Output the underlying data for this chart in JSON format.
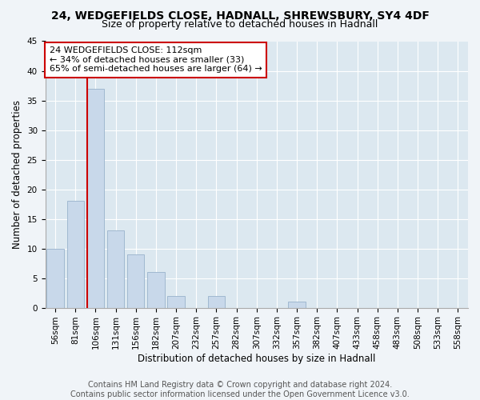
{
  "title": "24, WEDGEFIELDS CLOSE, HADNALL, SHREWSBURY, SY4 4DF",
  "subtitle": "Size of property relative to detached houses in Hadnall",
  "xlabel": "Distribution of detached houses by size in Hadnall",
  "ylabel": "Number of detached properties",
  "bar_labels": [
    "56sqm",
    "81sqm",
    "106sqm",
    "131sqm",
    "156sqm",
    "182sqm",
    "207sqm",
    "232sqm",
    "257sqm",
    "282sqm",
    "307sqm",
    "332sqm",
    "357sqm",
    "382sqm",
    "407sqm",
    "433sqm",
    "458sqm",
    "483sqm",
    "508sqm",
    "533sqm",
    "558sqm"
  ],
  "bar_values": [
    10,
    18,
    37,
    13,
    9,
    6,
    2,
    0,
    2,
    0,
    0,
    0,
    1,
    0,
    0,
    0,
    0,
    0,
    0,
    0,
    0
  ],
  "bar_color": "#c8d8ea",
  "bar_edgecolor": "#a0b8d0",
  "vline_color": "#cc0000",
  "annotation_text": "24 WEDGEFIELDS CLOSE: 112sqm\n← 34% of detached houses are smaller (33)\n65% of semi-detached houses are larger (64) →",
  "annotation_box_color": "white",
  "annotation_box_edgecolor": "#cc0000",
  "ylim": [
    0,
    45
  ],
  "yticks": [
    0,
    5,
    10,
    15,
    20,
    25,
    30,
    35,
    40,
    45
  ],
  "footer_text": "Contains HM Land Registry data © Crown copyright and database right 2024.\nContains public sector information licensed under the Open Government Licence v3.0.",
  "background_color": "#f0f4f8",
  "plot_background_color": "#dce8f0",
  "title_fontsize": 10,
  "subtitle_fontsize": 9,
  "xlabel_fontsize": 8.5,
  "ylabel_fontsize": 8.5,
  "tick_fontsize": 7.5,
  "annotation_fontsize": 8,
  "footer_fontsize": 7
}
